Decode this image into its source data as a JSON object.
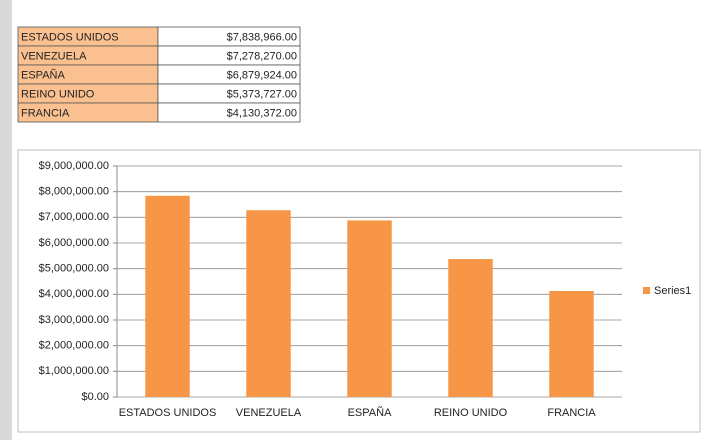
{
  "table": {
    "rows": [
      [
        "ESTADOS UNIDOS",
        "$7,838,966.00"
      ],
      [
        "VENEZUELA",
        "$7,278,270.00"
      ],
      [
        "ESPAÑA",
        "$6,879,924.00"
      ],
      [
        "REINO UNIDO",
        "$5,373,727.00"
      ],
      [
        "FRANCIA",
        "$4,130,372.00"
      ]
    ]
  },
  "chart_data": {
    "type": "bar",
    "categories": [
      "ESTADOS UNIDOS",
      "VENEZUELA",
      "ESPAÑA",
      "REINO UNIDO",
      "FRANCIA"
    ],
    "series": [
      {
        "name": "Series1",
        "color": "#f79646",
        "values": [
          7838966,
          7278270,
          6879924,
          5373727,
          4130372
        ]
      }
    ],
    "ylim": [
      0,
      9000000
    ],
    "yticks": [
      {
        "value": 0,
        "label": "$0.00"
      },
      {
        "value": 1000000,
        "label": "$1,000,000.00"
      },
      {
        "value": 2000000,
        "label": "$2,000,000.00"
      },
      {
        "value": 3000000,
        "label": "$3,000,000.00"
      },
      {
        "value": 4000000,
        "label": "$4,000,000.00"
      },
      {
        "value": 5000000,
        "label": "$5,000,000.00"
      },
      {
        "value": 6000000,
        "label": "$6,000,000.00"
      },
      {
        "value": 7000000,
        "label": "$7,000,000.00"
      },
      {
        "value": 8000000,
        "label": "$8,000,000.00"
      },
      {
        "value": 9000000,
        "label": "$9,000,000.00"
      }
    ],
    "grid": true,
    "legend": "right"
  }
}
